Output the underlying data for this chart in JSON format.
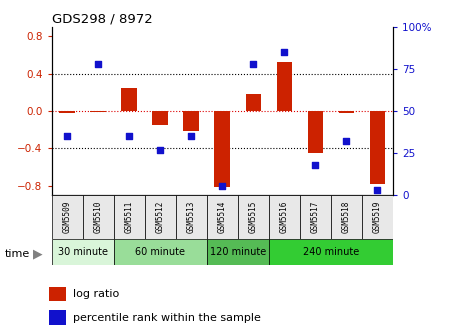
{
  "title": "GDS298 / 8972",
  "samples": [
    "GSM5509",
    "GSM5510",
    "GSM5511",
    "GSM5512",
    "GSM5513",
    "GSM5514",
    "GSM5515",
    "GSM5516",
    "GSM5517",
    "GSM5518",
    "GSM5519"
  ],
  "log_ratio": [
    -0.02,
    -0.01,
    0.25,
    -0.15,
    -0.22,
    -0.82,
    0.18,
    0.52,
    -0.45,
    -0.02,
    -0.78
  ],
  "percentile": [
    35,
    78,
    35,
    27,
    35,
    5,
    78,
    85,
    18,
    32,
    3
  ],
  "ylim": [
    -0.9,
    0.9
  ],
  "yticks_left": [
    -0.8,
    -0.4,
    0.0,
    0.4,
    0.8
  ],
  "yticks_right": [
    0,
    25,
    50,
    75,
    100
  ],
  "bar_color": "#cc2200",
  "dot_color": "#1111cc",
  "dot_size": 22,
  "bar_width": 0.5,
  "groups": [
    {
      "label": "30 minute",
      "start": 0,
      "end": 1,
      "color": "#d9f5d9"
    },
    {
      "label": "60 minute",
      "start": 2,
      "end": 4,
      "color": "#99dd99"
    },
    {
      "label": "120 minute",
      "start": 5,
      "end": 6,
      "color": "#55bb55"
    },
    {
      "label": "240 minute",
      "start": 7,
      "end": 10,
      "color": "#33cc33"
    }
  ],
  "group_colors": [
    "#d9f5d9",
    "#99dd99",
    "#55bb55",
    "#33cc33"
  ],
  "time_label": "time",
  "legend_log_ratio": "log ratio",
  "legend_percentile": "percentile rank within the sample",
  "hline_color": "#dd0000",
  "fig_bg": "#ffffff"
}
